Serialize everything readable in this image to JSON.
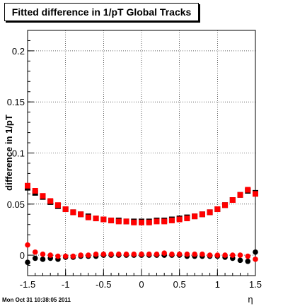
{
  "chart_data": {
    "type": "scatter",
    "title": "Fitted difference in 1/pT  Global Tracks",
    "ylabel": "difference in 1/pT",
    "xlabel": "η",
    "xlim": [
      -1.5,
      1.5
    ],
    "ylim": [
      -0.02,
      0.22
    ],
    "x_ticks": [
      "-1.5",
      "-1",
      "-0.5",
      "0",
      "0.5",
      "1",
      "1.5"
    ],
    "y_ticks": [
      "0",
      "0.05",
      "0.1",
      "0.15",
      "0.2"
    ],
    "grid": true,
    "series": [
      {
        "marker": "square",
        "color": "#000000",
        "x": [
          -1.5,
          -1.4,
          -1.3,
          -1.2,
          -1.1,
          -1.0,
          -0.9,
          -0.8,
          -0.7,
          -0.6,
          -0.5,
          -0.4,
          -0.3,
          -0.2,
          -0.1,
          0.0,
          0.1,
          0.2,
          0.3,
          0.4,
          0.5,
          0.6,
          0.7,
          0.8,
          0.9,
          1.0,
          1.1,
          1.2,
          1.3,
          1.4,
          1.5
        ],
        "y": [
          0.066,
          0.061,
          0.057,
          0.052,
          0.048,
          0.045,
          0.042,
          0.04,
          0.038,
          0.036,
          0.035,
          0.034,
          0.034,
          0.033,
          0.033,
          0.033,
          0.033,
          0.034,
          0.034,
          0.035,
          0.036,
          0.037,
          0.038,
          0.04,
          0.042,
          0.045,
          0.049,
          0.054,
          0.059,
          0.063,
          0.061
        ]
      },
      {
        "marker": "square",
        "color": "#ff0000",
        "x": [
          -1.5,
          -1.4,
          -1.3,
          -1.2,
          -1.1,
          -1.0,
          -0.9,
          -0.8,
          -0.7,
          -0.6,
          -0.5,
          -0.4,
          -0.3,
          -0.2,
          -0.1,
          0.0,
          0.1,
          0.2,
          0.3,
          0.4,
          0.5,
          0.6,
          0.7,
          0.8,
          0.9,
          1.0,
          1.1,
          1.2,
          1.3,
          1.4,
          1.5
        ],
        "y": [
          0.068,
          0.063,
          0.058,
          0.053,
          0.049,
          0.045,
          0.042,
          0.04,
          0.037,
          0.036,
          0.035,
          0.034,
          0.033,
          0.033,
          0.032,
          0.032,
          0.032,
          0.033,
          0.033,
          0.034,
          0.035,
          0.036,
          0.038,
          0.04,
          0.042,
          0.045,
          0.049,
          0.054,
          0.059,
          0.064,
          0.06
        ]
      },
      {
        "marker": "circle",
        "color": "#000000",
        "x": [
          -1.5,
          -1.4,
          -1.3,
          -1.2,
          -1.1,
          -1.0,
          -0.9,
          -0.8,
          -0.7,
          -0.6,
          -0.5,
          -0.4,
          -0.3,
          -0.2,
          -0.1,
          0.0,
          0.1,
          0.2,
          0.3,
          0.4,
          0.5,
          0.6,
          0.7,
          0.8,
          0.9,
          1.0,
          1.1,
          1.2,
          1.3,
          1.4,
          1.5
        ],
        "y": [
          -0.007,
          -0.003,
          -0.004,
          -0.003,
          -0.004,
          -0.002,
          -0.002,
          -0.001,
          -0.001,
          -0.001,
          0.0,
          0.0,
          0.0,
          0.0,
          0.0,
          0.0,
          0.0,
          0.0,
          0.0,
          0.0,
          0.0,
          -0.001,
          -0.001,
          -0.001,
          -0.001,
          -0.001,
          -0.002,
          -0.003,
          -0.005,
          -0.006,
          0.003
        ]
      },
      {
        "marker": "circle",
        "color": "#ff0000",
        "x": [
          -1.5,
          -1.4,
          -1.3,
          -1.2,
          -1.1,
          -1.0,
          -0.9,
          -0.8,
          -0.7,
          -0.6,
          -0.5,
          -0.4,
          -0.3,
          -0.2,
          -0.1,
          0.0,
          0.1,
          0.2,
          0.3,
          0.4,
          0.5,
          0.6,
          0.7,
          0.8,
          0.9,
          1.0,
          1.1,
          1.2,
          1.3,
          1.4,
          1.5
        ],
        "y": [
          0.01,
          0.003,
          0.001,
          0.0,
          -0.001,
          -0.001,
          -0.001,
          0.0,
          0.0,
          0.001,
          0.001,
          0.001,
          0.001,
          0.001,
          0.001,
          0.001,
          0.001,
          0.001,
          0.002,
          0.001,
          0.001,
          0.001,
          0.001,
          0.001,
          0.0,
          0.0,
          0.0,
          0.0,
          0.0,
          -0.001,
          -0.004
        ]
      }
    ]
  },
  "footer_text": "Mon Oct 31 10:38:05 2011"
}
